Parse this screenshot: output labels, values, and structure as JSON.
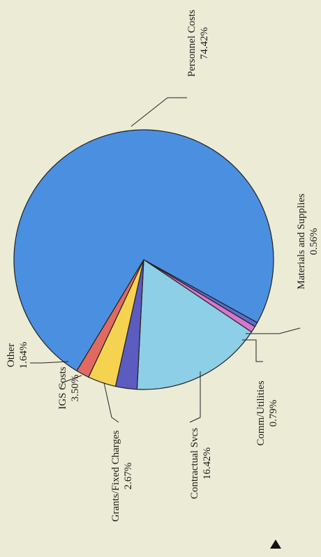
{
  "chart_data": {
    "type": "pie",
    "slices": [
      {
        "label": "Personnel Costs",
        "pct_label": "74.42%",
        "value": 74.42,
        "color": "#4a8fe0"
      },
      {
        "label": "Materials and Supplies",
        "pct_label": "0.56%",
        "value": 0.56,
        "color": "#5b6fd0"
      },
      {
        "label": "Comm/Utilities",
        "pct_label": "0.79%",
        "value": 0.79,
        "color": "#d776cc"
      },
      {
        "label": "Contractual Svcs",
        "pct_label": "16.42%",
        "value": 16.42,
        "color": "#8dcfe6"
      },
      {
        "label": "Grants/Fixed Charges",
        "pct_label": "2.67%",
        "value": 2.67,
        "color": "#5c5cc0"
      },
      {
        "label": "IGS Costs",
        "pct_label": "3.50%",
        "value": 3.5,
        "color": "#f5d250"
      },
      {
        "label": "Other",
        "pct_label": "1.64%",
        "value": 1.64,
        "color": "#e06a62"
      }
    ],
    "orientation": "rotated-90-ccw",
    "legend": "none"
  }
}
